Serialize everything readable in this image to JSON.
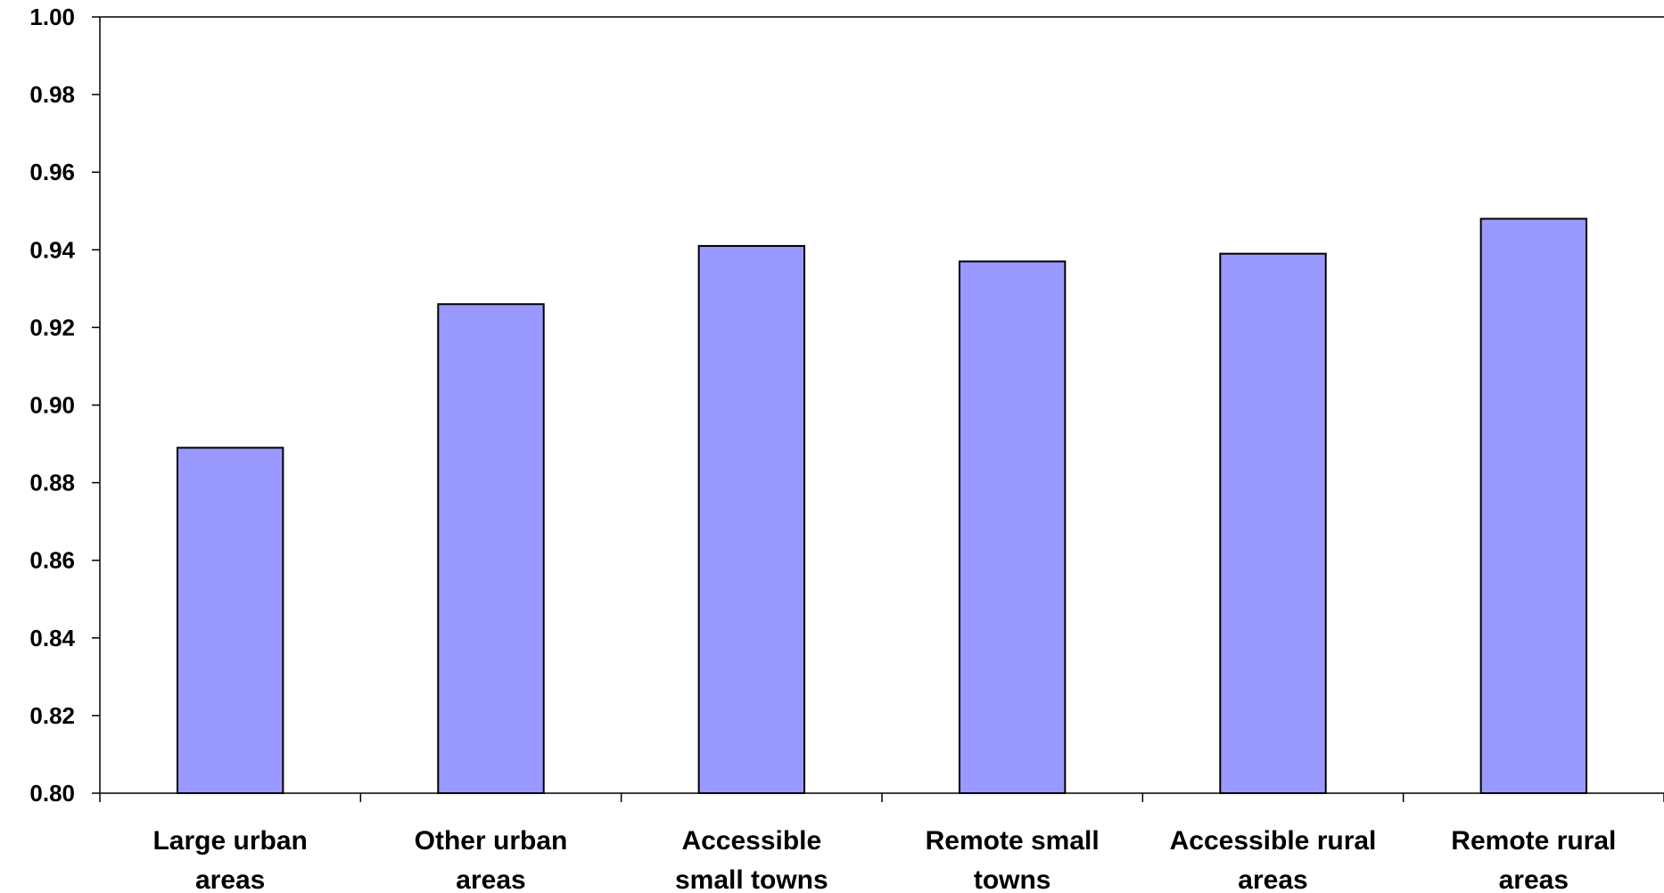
{
  "chart_data": {
    "type": "bar",
    "categories": [
      [
        "Large urban",
        "areas"
      ],
      [
        "Other urban",
        "areas"
      ],
      [
        "Accessible",
        "small towns"
      ],
      [
        "Remote small",
        "towns"
      ],
      [
        "Accessible rural",
        "areas"
      ],
      [
        "Remote rural",
        "areas"
      ]
    ],
    "values": [
      0.889,
      0.926,
      0.941,
      0.937,
      0.939,
      0.948
    ],
    "ylim": [
      0.8,
      1.0
    ],
    "yticks": [
      "0.80",
      "0.82",
      "0.84",
      "0.86",
      "0.88",
      "0.90",
      "0.92",
      "0.94",
      "0.96",
      "0.98",
      "1.00"
    ],
    "title": "",
    "xlabel": "",
    "ylabel": "",
    "grid": false,
    "bar_color": "#9999ff",
    "bar_border_color": "#000000"
  }
}
